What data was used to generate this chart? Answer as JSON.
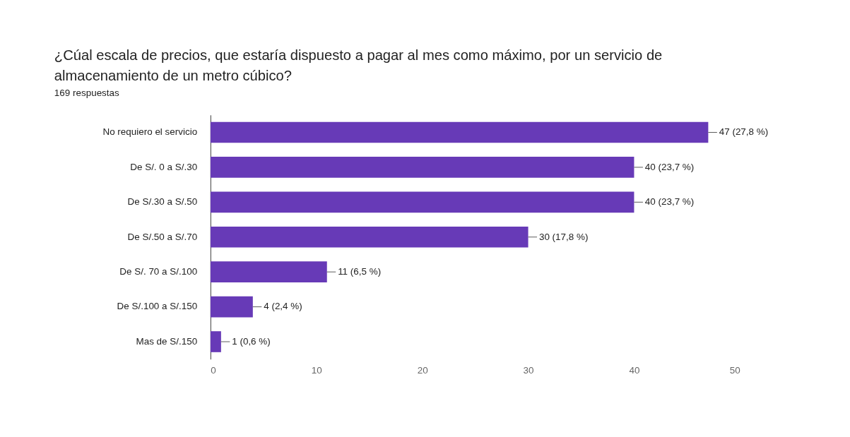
{
  "chart_data": {
    "type": "bar",
    "orientation": "horizontal",
    "title": "¿Cúal escala de precios, que estaría dispuesto a pagar al mes como máximo, por un servicio de almacenamiento de un metro cúbico?",
    "subtitle": "169 respuestas",
    "categories": [
      "No requiero el servicio",
      "De S/. 0 a S/.30",
      "De S/.30 a S/.50",
      "De S/.50 a S/.70",
      "De S/. 70 a S/.100",
      "De S/.100 a S/.150",
      "Mas de S/.150"
    ],
    "values": [
      47,
      40,
      40,
      30,
      11,
      4,
      1
    ],
    "value_labels": [
      "47 (27,8 %)",
      "40 (23,7 %)",
      "40 (23,7 %)",
      "30 (17,8 %)",
      "11 (6,5 %)",
      "4 (2,4 %)",
      "1 (0,6 %)"
    ],
    "color": "#673ab7",
    "xlim": [
      0,
      50
    ],
    "xticks": [
      0,
      10,
      20,
      30,
      40,
      50
    ],
    "grid": false,
    "legend": false
  }
}
